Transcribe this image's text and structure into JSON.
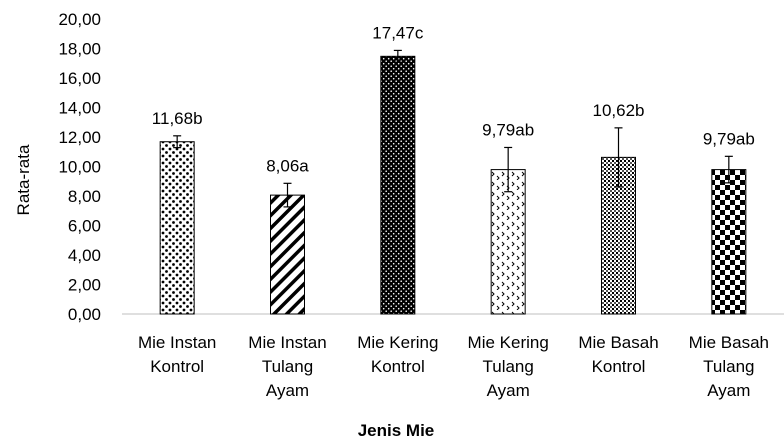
{
  "chart_data": {
    "type": "bar",
    "title": "",
    "xlabel": "Jenis Mie",
    "ylabel": "Rata-rata",
    "ylim": [
      0,
      20
    ],
    "yticks": [
      "0,00",
      "2,00",
      "4,00",
      "6,00",
      "8,00",
      "10,00",
      "12,00",
      "14,00",
      "16,00",
      "18,00",
      "20,00"
    ],
    "grid": false,
    "legend": "none",
    "categories": [
      [
        "Mie Instan",
        "Kontrol"
      ],
      [
        "Mie Instan",
        "Tulang",
        "Ayam"
      ],
      [
        "Mie Kering",
        "Kontrol"
      ],
      [
        "Mie Kering",
        "Tulang",
        "Ayam"
      ],
      [
        "Mie Basah",
        "Kontrol"
      ],
      [
        "Mie Basah",
        "Tulang",
        "Ayam"
      ]
    ],
    "values": [
      11.68,
      8.06,
      17.47,
      9.79,
      10.62,
      9.79
    ],
    "error": [
      0.4,
      0.8,
      0.4,
      1.5,
      2.0,
      0.9
    ],
    "data_labels": [
      "11,68b",
      "8,06a",
      "17,47c",
      "9,79ab",
      "10,62b",
      "9,79ab"
    ],
    "patterns": [
      "dots-sparse",
      "diagonal-stripes",
      "dense-dots-dark",
      "chevrons-light",
      "dense-dots-grey",
      "checkerboard"
    ],
    "colors": {
      "bar_fill": "#000000",
      "bar_bg": "#ffffff",
      "axis": "#bfbfbf",
      "text": "#000000"
    }
  }
}
